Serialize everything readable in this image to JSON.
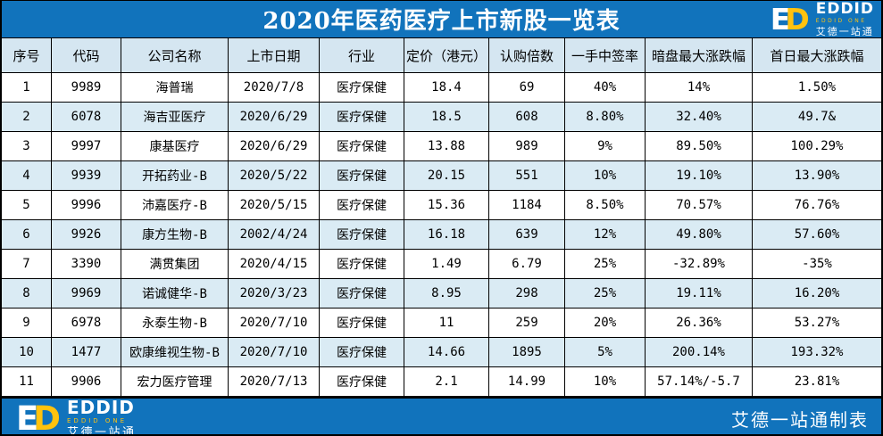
{
  "title": "2020年医药医疗上市新股一览表",
  "brand": {
    "monogram_e": "E",
    "monogram_d": "D",
    "name": "EDDID",
    "tagline": "EDDID ONE",
    "chinese_name": "艾德一站通"
  },
  "footer": {
    "credit": "艾德一站通制表"
  },
  "colors": {
    "primary_blue": "#1173BC",
    "accent_yellow": "#FFC20E",
    "alt_row_bg": "#DAEBF4",
    "header_row_bg": "#D5E6F1",
    "border": "#000000"
  },
  "table": {
    "columns": [
      "序号",
      "代码",
      "公司名称",
      "上市日期",
      "行业",
      "定价（港元）",
      "认购倍数",
      "一手中签率",
      "暗盘最大涨跌幅",
      "首日最大涨跌幅"
    ],
    "rows": [
      [
        "1",
        "9989",
        "海普瑞",
        "2020/7/8",
        "医疗保健",
        "18.4",
        "69",
        "40%",
        "14%",
        "1.50%"
      ],
      [
        "2",
        "6078",
        "海吉亚医疗",
        "2020/6/29",
        "医疗保健",
        "18.5",
        "608",
        "8.80%",
        "32.40%",
        "49.7&"
      ],
      [
        "3",
        "9997",
        "康基医疗",
        "2020/6/29",
        "医疗保健",
        "13.88",
        "989",
        "9%",
        "89.50%",
        "100.29%"
      ],
      [
        "4",
        "9939",
        "开拓药业-B",
        "2020/5/22",
        "医疗保健",
        "20.15",
        "551",
        "10%",
        "19.10%",
        "13.90%"
      ],
      [
        "5",
        "9996",
        "沛嘉医疗-B",
        "2020/5/15",
        "医疗保健",
        "15.36",
        "1184",
        "8.50%",
        "70.57%",
        "76.76%"
      ],
      [
        "6",
        "9926",
        "康方生物-B",
        "2002/4/24",
        "医疗保健",
        "16.18",
        "639",
        "12%",
        "49.80%",
        "57.60%"
      ],
      [
        "7",
        "3390",
        "满贯集团",
        "2020/4/15",
        "医疗保健",
        "1.49",
        "6.79",
        "25%",
        "-32.89%",
        "-35%"
      ],
      [
        "8",
        "9969",
        "诺诚健华-B",
        "2020/3/23",
        "医疗保健",
        "8.95",
        "298",
        "25%",
        "19.11%",
        "16.20%"
      ],
      [
        "9",
        "6978",
        "永泰生物-B",
        "2020/7/10",
        "医疗保健",
        "11",
        "259",
        "20%",
        "26.36%",
        "53.27%"
      ],
      [
        "10",
        "1477",
        "欧康维视生物-B",
        "2020/7/10",
        "医疗保健",
        "14.66",
        "1895",
        "5%",
        "200.14%",
        "193.32%"
      ],
      [
        "11",
        "9906",
        "宏力医疗管理",
        "2020/7/13",
        "医疗保健",
        "2.1",
        "14.99",
        "10%",
        "57.14%/-5.7",
        "23.81%"
      ]
    ]
  }
}
